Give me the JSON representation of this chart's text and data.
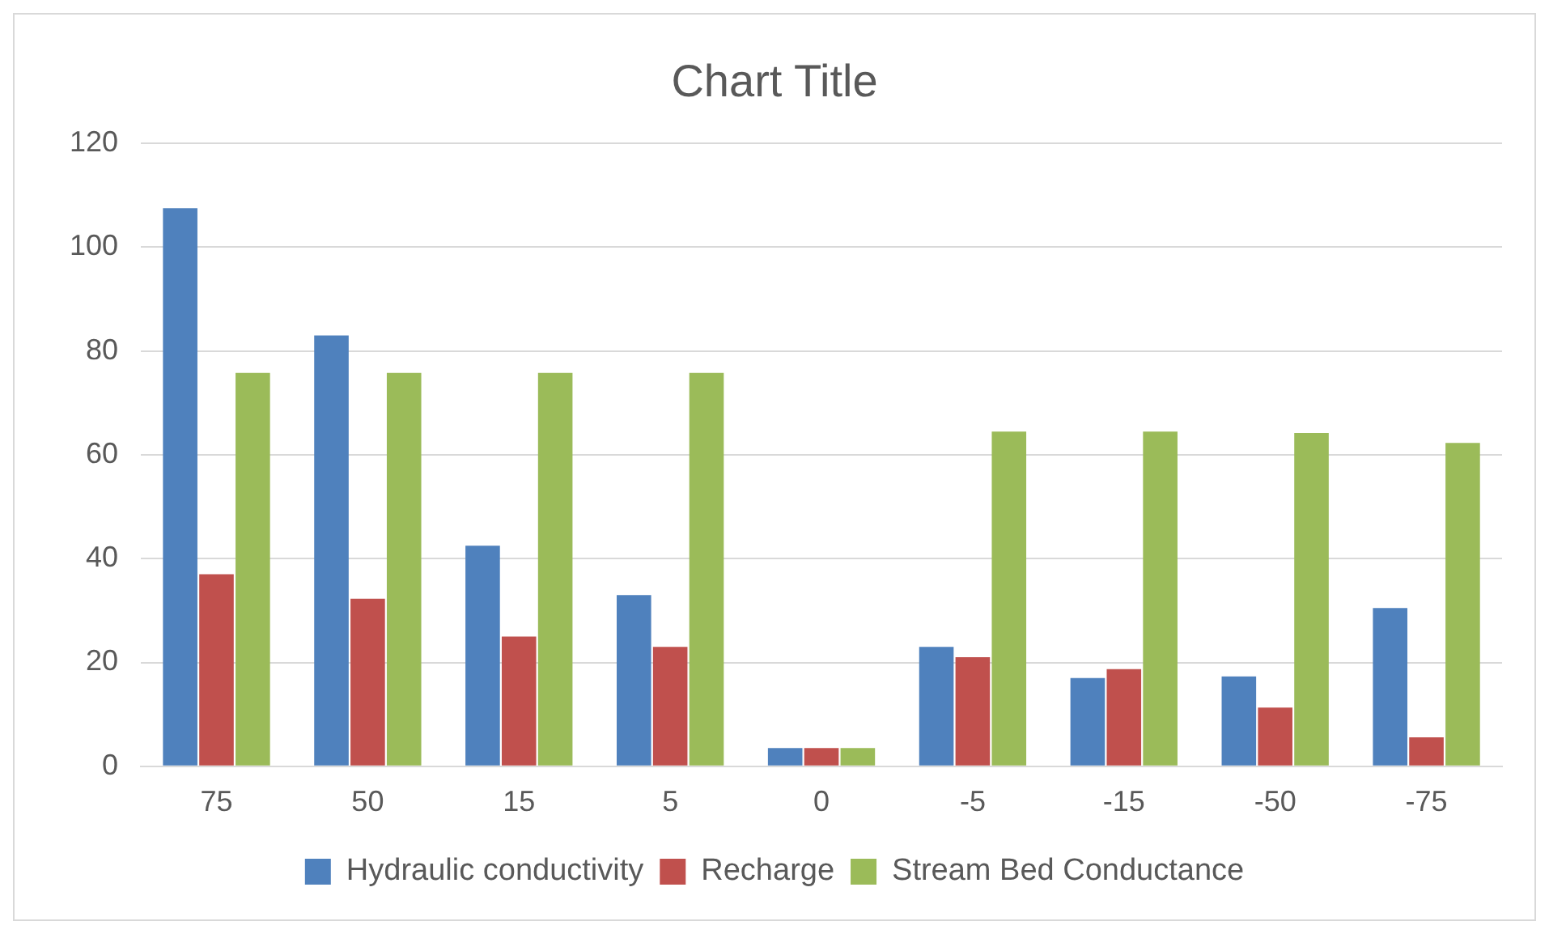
{
  "chart_data": {
    "type": "bar",
    "title": "Chart Title",
    "categories": [
      "75",
      "50",
      "15",
      "5",
      "0",
      "-5",
      "-15",
      "-50",
      "-75"
    ],
    "series": [
      {
        "name": "Hydraulic conductivity",
        "color": "#4f81bd",
        "values": [
          107.5,
          83,
          42.5,
          33,
          3.5,
          23,
          17,
          17.3,
          30.5
        ]
      },
      {
        "name": "Recharge",
        "color": "#c0504d",
        "values": [
          37,
          32.3,
          25,
          23,
          3.5,
          21,
          18.7,
          11.3,
          5.6
        ]
      },
      {
        "name": "Stream Bed Conductance",
        "color": "#9bbb59",
        "values": [
          75.8,
          75.8,
          75.8,
          75.8,
          3.5,
          64.5,
          64.5,
          64.2,
          62.3
        ]
      }
    ],
    "ylim": [
      0,
      120
    ],
    "yticks": [
      0,
      20,
      40,
      60,
      80,
      100,
      120
    ],
    "grid": "y",
    "legend": "bottom"
  }
}
